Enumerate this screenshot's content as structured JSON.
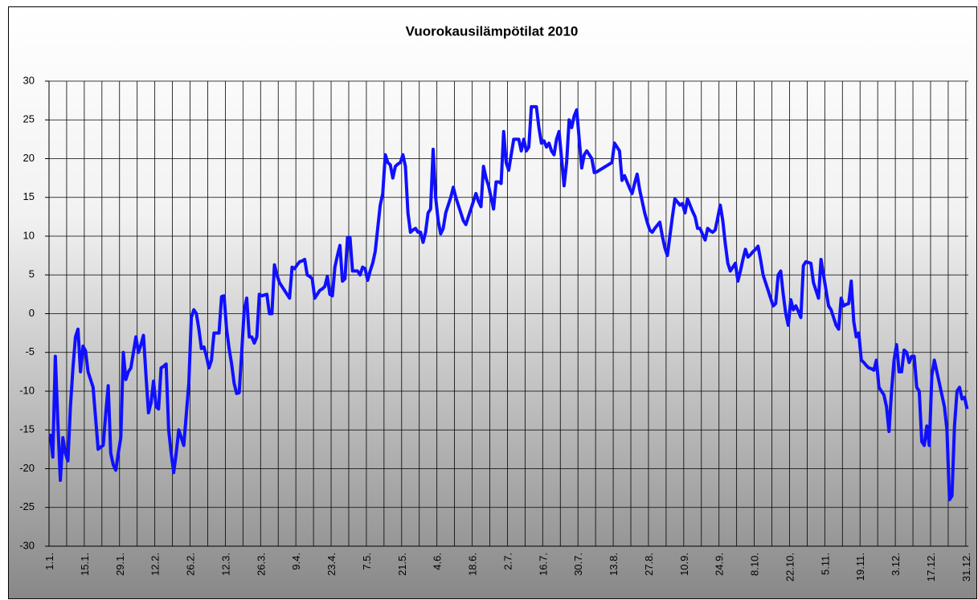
{
  "chart_data": {
    "type": "line",
    "title": "Vuorokausilämpötilat 2010",
    "categories": [
      "1.1.",
      null,
      null,
      null,
      null,
      null,
      null,
      null,
      null,
      null,
      null,
      null,
      null,
      null,
      "15.1.",
      null,
      null,
      null,
      null,
      null,
      null,
      null,
      null,
      null,
      null,
      null,
      null,
      null,
      "29.1.",
      null,
      null,
      null,
      null,
      null,
      null,
      null,
      null,
      null,
      null,
      null,
      null,
      null,
      "12.2.",
      null,
      null,
      null,
      null,
      null,
      null,
      null,
      null,
      null,
      null,
      null,
      null,
      null,
      "26.2.",
      null,
      null,
      null,
      null,
      null,
      null,
      null,
      null,
      null,
      null,
      null,
      null,
      null,
      "12.3.",
      null,
      null,
      null,
      null,
      null,
      null,
      null,
      null,
      null,
      null,
      null,
      null,
      null,
      "26.3.",
      null,
      null,
      null,
      null,
      null,
      null,
      null,
      null,
      null,
      null,
      null,
      null,
      null,
      "9.4.",
      null,
      null,
      null,
      null,
      null,
      null,
      null,
      null,
      null,
      null,
      null,
      null,
      null,
      "23.4.",
      null,
      null,
      null,
      null,
      null,
      null,
      null,
      null,
      null,
      null,
      null,
      null,
      null,
      "7.5.",
      null,
      null,
      null,
      null,
      null,
      null,
      null,
      null,
      null,
      null,
      null,
      null,
      null,
      "21.5.",
      null,
      null,
      null,
      null,
      null,
      null,
      null,
      null,
      null,
      null,
      null,
      null,
      null,
      "4.6.",
      null,
      null,
      null,
      null,
      null,
      null,
      null,
      null,
      null,
      null,
      null,
      null,
      null,
      "18.6.",
      null,
      null,
      null,
      null,
      null,
      null,
      null,
      null,
      null,
      null,
      null,
      null,
      null,
      "2.7.",
      null,
      null,
      null,
      null,
      null,
      null,
      null,
      null,
      null,
      null,
      null,
      null,
      null,
      "16.7.",
      null,
      null,
      null,
      null,
      null,
      null,
      null,
      null,
      null,
      null,
      null,
      null,
      null,
      "30.7.",
      null,
      null,
      null,
      null,
      null,
      null,
      null,
      null,
      null,
      null,
      null,
      null,
      null,
      "13.8.",
      null,
      null,
      null,
      null,
      null,
      null,
      null,
      null,
      null,
      null,
      null,
      null,
      null,
      "27.8.",
      null,
      null,
      null,
      null,
      null,
      null,
      null,
      null,
      null,
      null,
      null,
      null,
      null,
      "10.9.",
      null,
      null,
      null,
      null,
      null,
      null,
      null,
      null,
      null,
      null,
      null,
      null,
      null,
      "24.9.",
      null,
      null,
      null,
      null,
      null,
      null,
      null,
      null,
      null,
      null,
      null,
      null,
      null,
      "8.10.",
      null,
      null,
      null,
      null,
      null,
      null,
      null,
      null,
      null,
      null,
      null,
      null,
      null,
      "22.10.",
      null,
      null,
      null,
      null,
      null,
      null,
      null,
      null,
      null,
      null,
      null,
      null,
      null,
      "5.11.",
      null,
      null,
      null,
      null,
      null,
      null,
      null,
      null,
      null,
      null,
      null,
      null,
      null,
      "19.11.",
      null,
      null,
      null,
      null,
      null,
      null,
      null,
      null,
      null,
      null,
      null,
      null,
      null,
      "3.12.",
      null,
      null,
      null,
      null,
      null,
      null,
      null,
      null,
      null,
      null,
      null,
      null,
      null,
      "17.12.",
      null,
      null,
      null,
      null,
      null,
      null,
      null,
      null,
      null,
      null,
      null,
      null,
      null,
      "31.12."
    ],
    "values": [
      -15.5,
      -18.5,
      -5.5,
      -14,
      -21.5,
      -16,
      -18,
      -19,
      -12,
      -7,
      -3,
      -2,
      -7.5,
      -4.2,
      -4.8,
      -7.5,
      -8.5,
      -9.5,
      -13.5,
      -17.5,
      -17.2,
      -17,
      -13,
      -9.3,
      -18,
      -19.5,
      -20.2,
      -18,
      -16,
      -5,
      -8.5,
      -7.5,
      -7,
      -5,
      -3,
      -5,
      -4,
      -2.8,
      -8,
      -12.8,
      -11.5,
      -8.7,
      -12,
      -12.3,
      -7,
      -6.8,
      -6.5,
      -15,
      -18,
      -20.5,
      -18,
      -15,
      -16,
      -17,
      -13,
      -9,
      -0.5,
      0.5,
      0,
      -2,
      -4.5,
      -4.3,
      -5.5,
      -7,
      -6,
      -2.5,
      -2.5,
      -2.5,
      2.2,
      2.3,
      -2,
      -4.5,
      -6.5,
      -9,
      -10.3,
      -10.2,
      -5,
      0.5,
      2,
      -3,
      -3,
      -3.8,
      -3,
      2.5,
      2.3,
      2.4,
      2.5,
      0,
      0,
      6.3,
      5,
      4,
      3.5,
      3,
      2.5,
      2,
      6,
      5.8,
      6.3,
      6.7,
      6.8,
      7,
      5,
      4.8,
      4.5,
      2,
      2.5,
      3,
      3.2,
      3.5,
      4.8,
      2.5,
      2.3,
      6,
      7.5,
      8.8,
      4.2,
      4.5,
      9.8,
      9.8,
      5.5,
      5.5,
      5.5,
      5,
      6,
      5.8,
      4.3,
      5.5,
      6.5,
      8,
      11,
      14,
      15.5,
      20.5,
      19.5,
      19.2,
      17.5,
      19,
      19.3,
      19.5,
      20.5,
      19,
      13,
      10.5,
      10.8,
      11,
      10.5,
      10.5,
      9.2,
      10.5,
      13,
      13.5,
      21.2,
      15,
      12,
      10.3,
      11,
      13,
      14,
      15,
      16.3,
      15,
      14,
      13,
      12,
      11.5,
      12.5,
      13.5,
      14.5,
      15.5,
      14.5,
      13.8,
      19,
      17.5,
      16.5,
      15,
      13.5,
      17,
      17,
      16.8,
      23.5,
      19.5,
      18.5,
      20.5,
      22.5,
      22.5,
      22.5,
      21,
      22.5,
      21,
      21.5,
      26.7,
      26.7,
      26.7,
      24,
      22,
      22.3,
      21.5,
      22,
      21,
      20.5,
      22.5,
      23.5,
      20,
      16.5,
      19.5,
      25,
      24,
      25.5,
      26.3,
      22.5,
      18.8,
      20.5,
      21,
      20.5,
      20,
      18.2,
      18.3,
      18.5,
      18.7,
      18.9,
      19.1,
      19.3,
      19.5,
      22,
      21.5,
      21,
      17.2,
      17.8,
      17,
      16.2,
      15.5,
      16.8,
      18,
      16,
      14.5,
      13,
      11.8,
      10.8,
      10.5,
      11,
      11.4,
      11.8,
      10,
      8.5,
      7.5,
      10,
      12.5,
      14.8,
      14.4,
      14,
      14.2,
      13,
      14.8,
      14,
      13.2,
      12.5,
      11,
      11,
      10.2,
      9.5,
      11,
      10.7,
      10.5,
      10.8,
      12.4,
      14,
      12,
      9,
      6.5,
      5.5,
      6,
      6.5,
      4.2,
      5.5,
      7,
      8.3,
      7.3,
      7.6,
      8,
      8.3,
      8.7,
      7,
      5,
      4,
      3,
      2,
      1,
      1.3,
      5,
      5.5,
      2.5,
      0,
      -1.5,
      1.8,
      0.5,
      1,
      0.3,
      -0.5,
      6.2,
      6.7,
      6.6,
      6.5,
      4,
      3,
      2,
      7,
      5,
      3,
      1,
      0.5,
      -0.5,
      -1.5,
      -2,
      2,
      1,
      1.2,
      1.3,
      4.2,
      -1,
      -3,
      -2.5,
      -6,
      -6.3,
      -6.7,
      -7,
      -7.1,
      -7.3,
      -6,
      -9.5,
      -10,
      -10.5,
      -12,
      -15.2,
      -10,
      -6,
      -4,
      -7.5,
      -7.5,
      -4.7,
      -5,
      -6.3,
      -5.5,
      -5.5,
      -9.5,
      -10,
      -16.5,
      -17,
      -14.5,
      -17,
      -8,
      -6,
      -7.5,
      -9,
      -10.5,
      -12,
      -15,
      -24,
      -23.5,
      -14.5,
      -10,
      -9.5,
      -11,
      -10.8,
      -12.3
    ],
    "color": "#1010ff",
    "ylim": [
      -30,
      30
    ],
    "yticks": [
      -30,
      -25,
      -20,
      -15,
      -10,
      -5,
      0,
      5,
      10,
      15,
      20,
      25,
      30
    ],
    "grid": true
  }
}
